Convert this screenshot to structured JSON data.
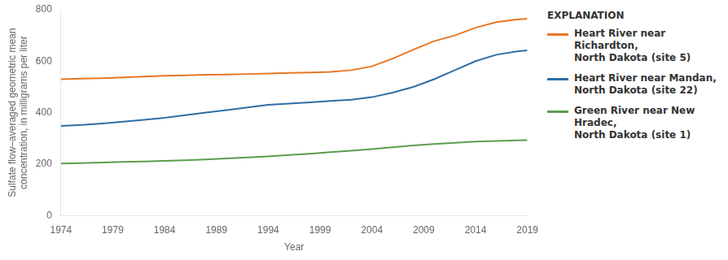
{
  "chart_data": {
    "type": "line",
    "title": "EXPLANATION",
    "xlabel": "Year",
    "ylabel": "Sulfate flow–averaged geometric mean\nconcentration, in milligrams per liter",
    "x": [
      1974,
      1976,
      1978,
      1980,
      1982,
      1984,
      1986,
      1988,
      1990,
      1992,
      1994,
      1996,
      1998,
      2000,
      2002,
      2004,
      2006,
      2008,
      2010,
      2012,
      2014,
      2016,
      2018,
      2019
    ],
    "series": [
      {
        "name": "Heart River near Richardton,\nNorth Dakota (site 5)",
        "color": "#E87722",
        "values": [
          530,
          532,
          534,
          537,
          540,
          543,
          545,
          547,
          548,
          550,
          552,
          554,
          556,
          558,
          565,
          580,
          610,
          645,
          678,
          700,
          730,
          752,
          762,
          765
        ]
      },
      {
        "name": "Heart River near Mandan,\nNorth Dakota (site 22)",
        "color": "#2E6EA6",
        "values": [
          348,
          352,
          358,
          365,
          372,
          380,
          390,
          400,
          410,
          420,
          430,
          435,
          440,
          445,
          450,
          460,
          478,
          500,
          530,
          565,
          600,
          625,
          638,
          642
        ]
      },
      {
        "name": "Green River near New Hradec,\nNorth Dakota (site 1)",
        "color": "#5B9E4D",
        "values": [
          202,
          204,
          206,
          208,
          210,
          212,
          215,
          218,
          222,
          226,
          230,
          235,
          240,
          246,
          252,
          258,
          265,
          272,
          278,
          283,
          287,
          290,
          292,
          293
        ]
      }
    ],
    "xlim": [
      1974,
      2019
    ],
    "xticks": [
      1974,
      1979,
      1984,
      1989,
      1994,
      1999,
      2004,
      2009,
      2014,
      2019
    ],
    "ylim": [
      0,
      800
    ],
    "yticks": [
      0,
      200,
      400,
      600,
      800
    ],
    "grid": false,
    "legend": "right"
  }
}
